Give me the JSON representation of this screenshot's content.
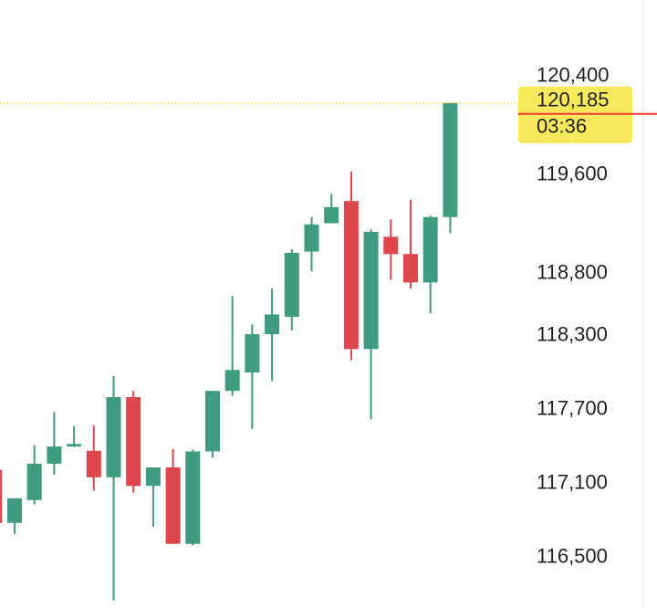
{
  "chart_data": {
    "type": "candlestick",
    "up_color": "#409c81",
    "down_color": "#e0474c",
    "open": [
      117210,
      116780,
      116965,
      117260,
      117400,
      117365,
      117150,
      117800,
      117080,
      117230,
      116610,
      117360,
      117850,
      118000,
      118310,
      118450,
      118980,
      119210,
      119390,
      118190,
      119100,
      118960,
      118730,
      119260
    ],
    "high": [
      117210,
      116980,
      117410,
      117680,
      117565,
      117570,
      117970,
      117850,
      117230,
      117380,
      117375,
      117850,
      118620,
      118390,
      118680,
      119000,
      119260,
      119450,
      119630,
      119160,
      119240,
      119400,
      119270,
      120185
    ],
    "low": [
      116780,
      116690,
      116930,
      117170,
      117395,
      117040,
      116150,
      117025,
      116750,
      116610,
      116600,
      117310,
      117810,
      117540,
      117930,
      118340,
      118820,
      119210,
      118100,
      117620,
      118750,
      118680,
      118480,
      119130
    ],
    "close": [
      116780,
      116980,
      117260,
      117400,
      117420,
      117150,
      117800,
      117080,
      117230,
      116610,
      117360,
      117850,
      118020,
      118310,
      118470,
      118970,
      119200,
      119340,
      118190,
      119140,
      118960,
      118730,
      119260,
      120185
    ],
    "ylim": [
      116090,
      121020
    ],
    "yticks": [
      {
        "value": 116500,
        "label": "116,500"
      },
      {
        "value": 117100,
        "label": "117,100"
      },
      {
        "value": 117700,
        "label": "117,700"
      },
      {
        "value": 118300,
        "label": "118,300"
      },
      {
        "value": 118800,
        "label": "118,800"
      },
      {
        "value": 119600,
        "label": "119,600"
      },
      {
        "value": 120400,
        "label": "120,400"
      }
    ],
    "last_price": {
      "value": 120185,
      "label": "120,185"
    },
    "countdown": "03:36",
    "price_line_color": "#f23b2f",
    "price_label_color": "#f8e85c"
  }
}
